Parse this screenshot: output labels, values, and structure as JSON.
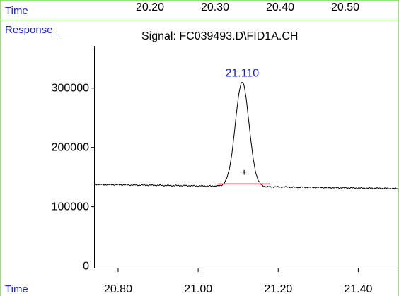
{
  "colors": {
    "frame": "#8ee66e",
    "label_blue": "#1a22d6",
    "signal": "#000000",
    "baseline": "#e0202a"
  },
  "header": {
    "time_label": "Time",
    "top_ticks": [
      "20.20",
      "20.30",
      "20.40",
      "20.50"
    ]
  },
  "chart_data": {
    "type": "line",
    "title": "Signal: FC039493.D\\FID1A.CH",
    "ylabel": "Response_",
    "xlabel": "Time",
    "xlim": [
      20.74,
      21.5
    ],
    "ylim": [
      -3000,
      370000
    ],
    "x_ticks": [
      "20.80",
      "21.00",
      "21.20",
      "21.40"
    ],
    "y_ticks": [
      "0",
      "100000",
      "200000",
      "300000"
    ],
    "grid": false,
    "baseline_level": 137500,
    "baseline_slope_per_min": -9000,
    "peak": {
      "label": "21.110",
      "rt": 21.11,
      "apex": 310000,
      "sigma": 0.017
    },
    "integration_baseline": {
      "x": [
        21.05,
        21.18
      ],
      "y": [
        138500,
        138500
      ]
    },
    "integration_marker": {
      "label": "+",
      "x": 21.115,
      "y": 152000
    }
  }
}
